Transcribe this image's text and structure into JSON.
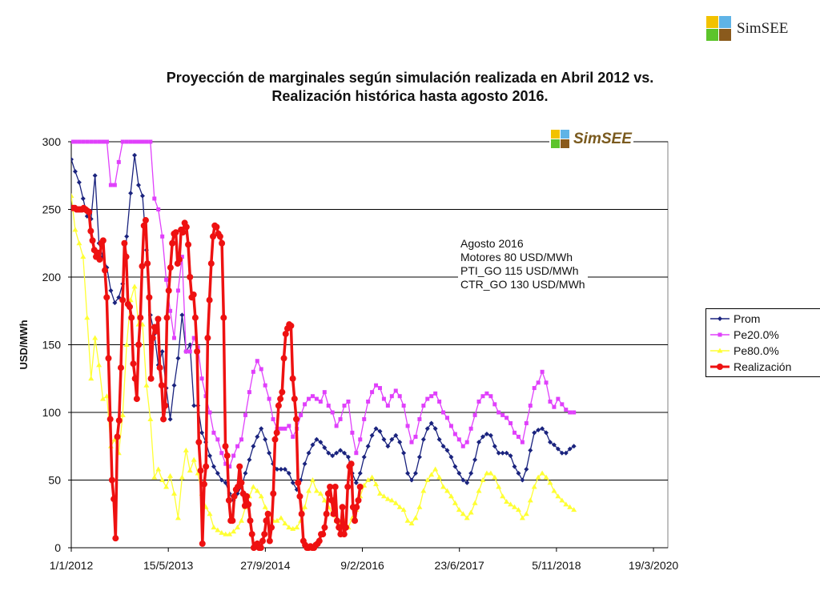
{
  "header": {
    "logo_text": "SimSEE"
  },
  "chart_logo": {
    "text": "SimSEE"
  },
  "colors": {
    "Prom": "#1a237e",
    "Pe20": "#e040fb",
    "Pe80": "#ffff33",
    "Realizacion": "#ee1111"
  },
  "chart_data": {
    "type": "line",
    "title": "Proyección de marginales según simulación realizada en Abril 2012 vs. Realización histórica hasta agosto 2016.",
    "title_lines": [
      "Proyección de marginales según simulación realizada en Abril 2012 vs.",
      "Realización histórica hasta agosto 2016."
    ],
    "xlabel": "",
    "ylabel": "USD/MWh",
    "ylim": [
      0,
      300
    ],
    "yticks": [
      0,
      50,
      100,
      150,
      200,
      250,
      300
    ],
    "xaxis_start": "1/1/2012",
    "xaxis_end": "1/6/2020",
    "xticks": [
      "1/1/2012",
      "15/5/2013",
      "27/9/2014",
      "9/2/2016",
      "23/6/2017",
      "5/11/2018",
      "19/3/2020"
    ],
    "grid": true,
    "legend_position": "right",
    "annotation": [
      "Agosto 2016",
      "Motores 80 USD/MWh",
      "PTI_GO 115 USD/MWh",
      "CTR_GO 130 USD/MWh"
    ],
    "series": [
      {
        "name": "Prom",
        "color": "#1a237e",
        "marker": "diamond",
        "values": [
          287,
          278,
          270,
          258,
          245,
          243,
          275,
          225,
          215,
          207,
          190,
          181,
          185,
          195,
          230,
          262,
          290,
          268,
          260,
          220,
          172,
          158,
          135,
          145,
          118,
          95,
          120,
          140,
          172,
          145,
          150,
          105,
          105,
          85,
          78,
          68,
          60,
          55,
          50,
          48,
          40,
          35,
          40,
          45,
          55,
          65,
          75,
          82,
          88,
          80,
          70,
          62,
          58,
          58,
          58,
          55,
          48,
          43,
          50,
          62,
          70,
          76,
          80,
          78,
          74,
          70,
          68,
          70,
          72,
          70,
          67,
          55,
          48,
          55,
          67,
          75,
          83,
          88,
          86,
          80,
          75,
          80,
          83,
          78,
          70,
          55,
          50,
          55,
          67,
          80,
          88,
          92,
          88,
          80,
          75,
          72,
          67,
          60,
          55,
          50,
          48,
          55,
          65,
          78,
          82,
          84,
          83,
          75,
          70,
          70,
          70,
          68,
          60,
          55,
          50,
          58,
          72,
          85,
          87,
          88,
          85,
          78,
          76,
          73,
          70,
          70,
          73,
          75
        ]
      },
      {
        "name": "Pe20.0%",
        "color": "#e040fb",
        "marker": "square",
        "values": [
          300,
          300,
          300,
          300,
          300,
          300,
          300,
          300,
          300,
          300,
          268,
          268,
          285,
          300,
          300,
          300,
          300,
          300,
          300,
          300,
          300,
          258,
          250,
          230,
          198,
          175,
          155,
          190,
          215,
          145,
          145,
          155,
          148,
          125,
          112,
          100,
          85,
          80,
          70,
          62,
          60,
          68,
          75,
          80,
          98,
          115,
          130,
          138,
          132,
          120,
          110,
          95,
          88,
          88,
          88,
          90,
          82,
          88,
          98,
          106,
          110,
          112,
          110,
          108,
          115,
          105,
          100,
          90,
          95,
          105,
          108,
          85,
          70,
          80,
          95,
          108,
          115,
          120,
          118,
          110,
          105,
          112,
          116,
          112,
          105,
          90,
          78,
          82,
          95,
          105,
          110,
          112,
          114,
          108,
          100,
          96,
          90,
          84,
          80,
          75,
          78,
          88,
          98,
          108,
          112,
          114,
          112,
          106,
          100,
          98,
          96,
          92,
          85,
          82,
          78,
          92,
          105,
          118,
          122,
          130,
          122,
          108,
          104,
          110,
          106,
          102,
          100,
          100
        ]
      },
      {
        "name": "Pe80.0%",
        "color": "#ffff33",
        "marker": "triangle",
        "values": [
          260,
          235,
          225,
          215,
          170,
          125,
          155,
          135,
          110,
          112,
          75,
          80,
          70,
          98,
          150,
          183,
          193,
          165,
          165,
          120,
          95,
          52,
          58,
          50,
          45,
          53,
          40,
          22,
          52,
          72,
          57,
          65,
          55,
          40,
          30,
          25,
          15,
          13,
          11,
          10,
          10,
          12,
          15,
          20,
          30,
          38,
          45,
          42,
          38,
          30,
          25,
          20,
          20,
          22,
          18,
          15,
          14,
          15,
          20,
          30,
          42,
          50,
          42,
          40,
          35,
          30,
          25,
          20,
          18,
          20,
          15,
          22,
          28,
          38,
          46,
          50,
          52,
          47,
          40,
          38,
          36,
          35,
          33,
          30,
          28,
          20,
          18,
          22,
          30,
          42,
          50,
          54,
          58,
          52,
          45,
          42,
          38,
          33,
          28,
          25,
          22,
          26,
          33,
          42,
          50,
          55,
          55,
          52,
          45,
          38,
          34,
          32,
          30,
          28,
          22,
          25,
          35,
          45,
          52,
          55,
          52,
          48,
          42,
          38,
          35,
          32,
          30,
          28
        ]
      },
      {
        "name": "Realización",
        "color": "#ee1111",
        "marker": "circle",
        "values": [
          251,
          251,
          251,
          250,
          250,
          250,
          250,
          251,
          250,
          249,
          248,
          234,
          227,
          220,
          215,
          218,
          213,
          225,
          227,
          205,
          185,
          140,
          95,
          50,
          36,
          7,
          82,
          94,
          133,
          183,
          225,
          215,
          180,
          178,
          170,
          136,
          125,
          110,
          150,
          170,
          208,
          238,
          242,
          210,
          185,
          125,
          155,
          163,
          160,
          169,
          133,
          120,
          95,
          105,
          170,
          190,
          207,
          225,
          232,
          233,
          210,
          213,
          235,
          233,
          240,
          237,
          224,
          200,
          185,
          187,
          170,
          145,
          78,
          57,
          3,
          47,
          60,
          155,
          183,
          210,
          230,
          238,
          237,
          232,
          230,
          225,
          170,
          75,
          68,
          35,
          20,
          20,
          38,
          43,
          45,
          60,
          48,
          40,
          31,
          38,
          32,
          20,
          10,
          0,
          2,
          3,
          0,
          0,
          5,
          10,
          20,
          25,
          5,
          15,
          40,
          80,
          85,
          105,
          110,
          115,
          140,
          158,
          162,
          165,
          164,
          125,
          110,
          95,
          48,
          38,
          25,
          5,
          2,
          0,
          0,
          1,
          0,
          0,
          2,
          3,
          5,
          10,
          10,
          15,
          25,
          40,
          45,
          35,
          25,
          45,
          20,
          15,
          10,
          30,
          10,
          15,
          45,
          60,
          62,
          30,
          20,
          30,
          35,
          45
        ]
      }
    ]
  }
}
